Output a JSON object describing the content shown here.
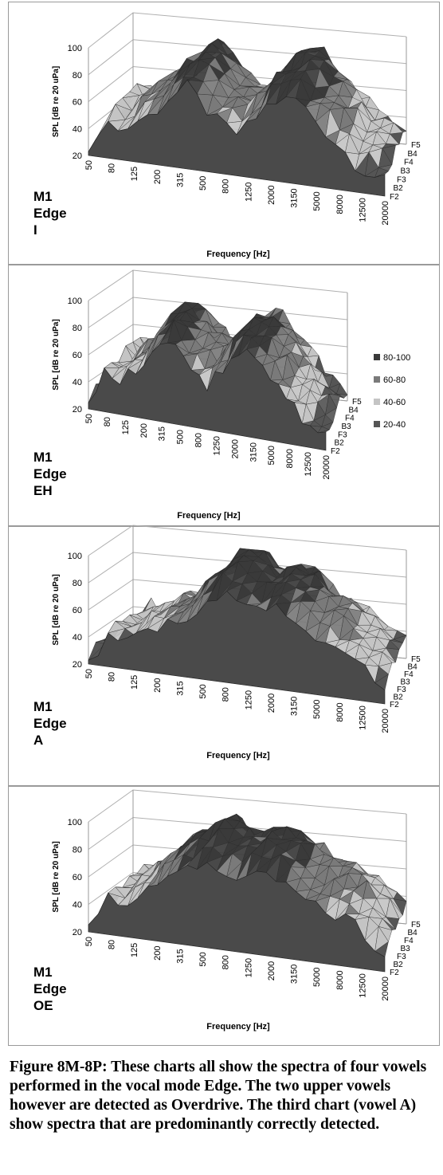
{
  "caption": "Figure 8M-8P: These charts all show the spectra of four vowels performed in the vocal mode Edge. The two upper vowels however are detected as Overdrive. The third chart (vowel A) show spectra that are predominantly correctly detected.",
  "colors": {
    "band_80_100": "#3a3a3a",
    "band_60_80": "#7a7a7a",
    "band_40_60": "#c4c4c4",
    "band_20_40": "#555555",
    "panel_border": "#9a9a9a"
  },
  "chart_data": [
    {
      "type": "surface",
      "label_lines": [
        "M1",
        "Edge",
        "I"
      ],
      "ylabel": "SPL [dB re 20 uPa]",
      "xlabel": "Frequency [Hz]",
      "ylim": [
        20,
        100
      ],
      "y_ticks": [
        "20",
        "40",
        "60",
        "80",
        "100"
      ],
      "x_ticks": [
        "50",
        "80",
        "125",
        "200",
        "315",
        "500",
        "800",
        "1250",
        "2000",
        "3150",
        "5000",
        "8000",
        "12500",
        "20000"
      ],
      "z_ticks": [
        "F2",
        "B2",
        "F3",
        "B3",
        "F4",
        "B4",
        "F5"
      ],
      "legend": [],
      "grid": true,
      "front_profile_db": [
        26,
        30,
        50,
        38,
        42,
        48,
        52,
        58,
        66,
        72,
        78,
        70,
        62,
        56,
        52,
        48,
        54,
        62,
        72,
        76,
        78,
        80,
        74,
        66,
        58,
        52,
        46,
        38,
        34,
        32,
        30
      ],
      "peak_db": [
        34,
        38,
        58,
        50,
        56,
        62,
        66,
        72,
        82,
        88,
        94,
        86,
        76,
        70,
        66,
        62,
        68,
        76,
        86,
        90,
        92,
        94,
        86,
        80,
        74,
        66,
        58,
        50,
        44,
        40,
        36
      ]
    },
    {
      "type": "surface",
      "label_lines": [
        "M1",
        "Edge",
        "EH"
      ],
      "ylabel": "SPL [dB re 20 uPa]",
      "xlabel": "Frequency [Hz]",
      "ylim": [
        20,
        100
      ],
      "y_ticks": [
        "20",
        "40",
        "60",
        "80",
        "100"
      ],
      "x_ticks": [
        "50",
        "80",
        "125",
        "200",
        "315",
        "500",
        "800",
        "1250",
        "2000",
        "3150",
        "5000",
        "8000",
        "12500",
        "20000"
      ],
      "z_ticks": [
        "F2",
        "B2",
        "F3",
        "B3",
        "F4",
        "B4",
        "F5"
      ],
      "legend": [
        "80-100",
        "60-80",
        "40-60",
        "20-40"
      ],
      "grid": true,
      "front_profile_db": [
        26,
        30,
        46,
        40,
        44,
        48,
        54,
        60,
        68,
        74,
        78,
        72,
        64,
        58,
        54,
        50,
        56,
        64,
        72,
        76,
        78,
        76,
        70,
        62,
        56,
        50,
        44,
        38,
        34,
        30,
        28
      ],
      "peak_db": [
        32,
        36,
        54,
        48,
        54,
        60,
        66,
        74,
        82,
        90,
        92,
        84,
        78,
        72,
        68,
        64,
        70,
        78,
        86,
        90,
        90,
        88,
        82,
        76,
        70,
        62,
        56,
        48,
        42,
        38,
        34
      ]
    },
    {
      "type": "surface",
      "label_lines": [
        "M1",
        "Edge",
        "A"
      ],
      "ylabel": "SPL [dB re 20 uPa]",
      "xlabel": "Frequency [Hz]",
      "ylim": [
        20,
        100
      ],
      "y_ticks": [
        "20",
        "40",
        "60",
        "80",
        "100"
      ],
      "x_ticks": [
        "50",
        "80",
        "125",
        "200",
        "315",
        "500",
        "800",
        "1250",
        "2000",
        "3150",
        "5000",
        "8000",
        "12500",
        "20000"
      ],
      "z_ticks": [
        "F2",
        "B2",
        "F3",
        "B3",
        "F4",
        "B4",
        "F5"
      ],
      "legend": [],
      "grid": true,
      "front_profile_db": [
        26,
        30,
        42,
        38,
        40,
        44,
        46,
        50,
        54,
        58,
        62,
        66,
        72,
        80,
        86,
        82,
        76,
        72,
        74,
        78,
        76,
        72,
        66,
        60,
        56,
        52,
        48,
        44,
        40,
        36,
        32
      ],
      "peak_db": [
        30,
        34,
        48,
        44,
        48,
        52,
        56,
        60,
        64,
        70,
        76,
        82,
        90,
        98,
        100,
        96,
        90,
        86,
        88,
        92,
        90,
        86,
        80,
        74,
        70,
        66,
        62,
        56,
        50,
        44,
        38
      ]
    },
    {
      "type": "surface",
      "label_lines": [
        "M1",
        "Edge",
        "OE"
      ],
      "ylabel": "SPL [dB re 20 uPa]",
      "xlabel": "Frequency [Hz]",
      "ylim": [
        20,
        100
      ],
      "y_ticks": [
        "20",
        "40",
        "60",
        "80",
        "100"
      ],
      "x_ticks": [
        "50",
        "80",
        "125",
        "200",
        "315",
        "500",
        "800",
        "1250",
        "2000",
        "3150",
        "5000",
        "8000",
        "12500",
        "20000"
      ],
      "z_ticks": [
        "F2",
        "B2",
        "F3",
        "B3",
        "F4",
        "B4",
        "F5"
      ],
      "legend": [],
      "grid": true,
      "front_profile_db": [
        26,
        30,
        44,
        40,
        44,
        50,
        56,
        62,
        66,
        70,
        74,
        78,
        80,
        76,
        72,
        70,
        74,
        76,
        78,
        76,
        72,
        68,
        62,
        58,
        56,
        54,
        52,
        48,
        42,
        36,
        30
      ],
      "peak_db": [
        32,
        36,
        52,
        48,
        54,
        60,
        66,
        72,
        78,
        84,
        88,
        92,
        96,
        92,
        88,
        86,
        90,
        92,
        92,
        90,
        86,
        82,
        76,
        72,
        70,
        68,
        66,
        62,
        54,
        46,
        38
      ]
    }
  ]
}
